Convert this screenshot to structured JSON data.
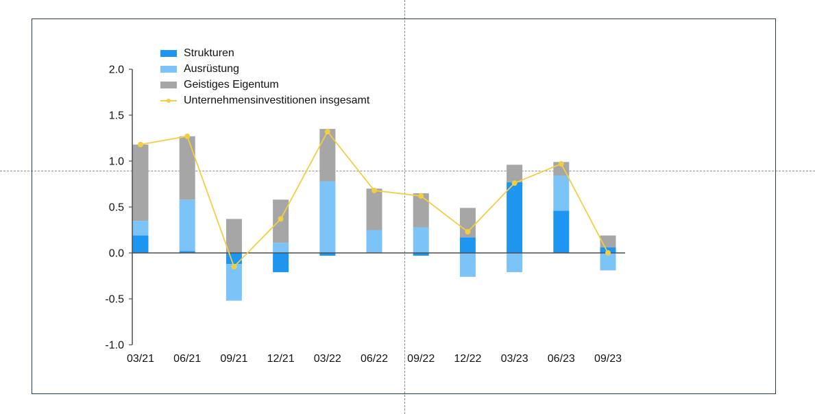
{
  "chart_data": {
    "type": "bar",
    "stacked": true,
    "categories": [
      "03/21",
      "06/21",
      "09/21",
      "12/21",
      "03/22",
      "06/22",
      "09/22",
      "12/22",
      "03/23",
      "06/23",
      "09/23"
    ],
    "series": [
      {
        "name": "Strukturen",
        "kind": "bar",
        "color": "#1e96f0",
        "values": [
          0.19,
          0.02,
          -0.12,
          -0.21,
          -0.03,
          0.0,
          -0.03,
          0.17,
          0.77,
          0.46,
          0.06
        ]
      },
      {
        "name": "Ausrüstung",
        "kind": "bar",
        "color": "#7cc4f8",
        "values": [
          0.16,
          0.56,
          -0.4,
          0.11,
          0.78,
          0.25,
          0.28,
          -0.26,
          -0.21,
          0.38,
          -0.19
        ]
      },
      {
        "name": "Geistiges Eigentum",
        "kind": "bar",
        "color": "#a6a6a6",
        "values": [
          0.83,
          0.69,
          0.37,
          0.47,
          0.57,
          0.45,
          0.37,
          0.32,
          0.19,
          0.15,
          0.13
        ]
      },
      {
        "name": "Unternehmensinvestitionen insgesamt",
        "kind": "line",
        "color": "#f2ce42",
        "values": [
          1.18,
          1.27,
          -0.15,
          0.37,
          1.32,
          0.68,
          0.62,
          0.23,
          0.76,
          0.97,
          0.0
        ]
      }
    ],
    "yticks": [
      "2.0",
      "1.5",
      "1.0",
      "0.5",
      "0.0",
      "-0.5",
      "-1.0"
    ],
    "ylim": [
      -1.0,
      2.0
    ],
    "title": "",
    "xlabel": "",
    "ylabel": "",
    "grid": false,
    "legend_position": "top-left"
  }
}
